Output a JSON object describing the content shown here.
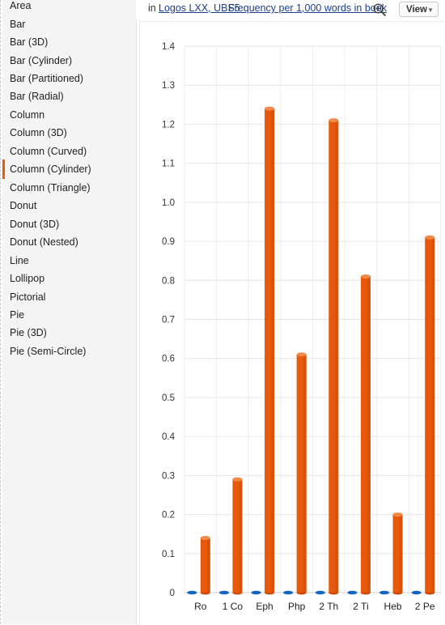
{
  "sidebar": {
    "items": [
      {
        "label": "Area"
      },
      {
        "label": "Bar"
      },
      {
        "label": "Bar (3D)"
      },
      {
        "label": "Bar (Cylinder)"
      },
      {
        "label": "Bar (Partitioned)"
      },
      {
        "label": "Bar (Radial)"
      },
      {
        "label": "Column"
      },
      {
        "label": "Column (3D)"
      },
      {
        "label": "Column (Curved)"
      },
      {
        "label": "Column (Cylinder)"
      },
      {
        "label": "Column (Triangle)"
      },
      {
        "label": "Donut"
      },
      {
        "label": "Donut (3D)"
      },
      {
        "label": "Donut (Nested)"
      },
      {
        "label": "Line"
      },
      {
        "label": "Lollipop"
      },
      {
        "label": "Pictorial"
      },
      {
        "label": "Pie"
      },
      {
        "label": "Pie (3D)"
      },
      {
        "label": "Pie (Semi-Circle)"
      }
    ],
    "selected": "Column (Cylinder)"
  },
  "toolbar": {
    "in_label": "in",
    "resources": "Logos LXX, UBS5",
    "measure": "Frequency per 1,000 words in book",
    "zoom_icon": "zoom-in-icon",
    "view_label": "View"
  },
  "colors": {
    "bar": "#e8590c",
    "bar_dark": "#c74a08",
    "bar_top": "#f08a4b",
    "lxx_marker": "#1565c0",
    "accent": "#e8590c"
  },
  "chart_data": {
    "type": "bar",
    "style": "column-cylinder",
    "categories": [
      "Ro",
      "1 Co",
      "Eph",
      "Php",
      "2 Th",
      "2 Ti",
      "Heb",
      "2 Pe"
    ],
    "series": [
      {
        "values": [
          0,
          0,
          0,
          0,
          0,
          0,
          0,
          0
        ]
      },
      {
        "values": [
          0.14,
          0.29,
          1.24,
          0.61,
          1.21,
          0.81,
          0.2,
          0.91
        ]
      }
    ],
    "ylim": [
      0,
      1.4
    ],
    "yticks": [
      "0",
      "0.1",
      "0.2",
      "0.3",
      "0.4",
      "0.5",
      "0.6",
      "0.7",
      "0.8",
      "0.9",
      "1.0",
      "1.1",
      "1.2",
      "1.3",
      "1.4"
    ],
    "grid": true,
    "legend": "none"
  }
}
